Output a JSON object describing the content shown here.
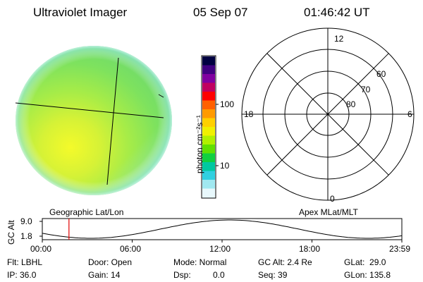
{
  "header": {
    "instrument": "Ultraviolet Imager",
    "date": "05 Sep 07",
    "time": "01:46:42 UT"
  },
  "colorbar": {
    "unit_label": "photon cm⁻²s⁻¹",
    "ticks": [
      "100",
      "10"
    ],
    "scale": "log",
    "colors": [
      "#000040",
      "#400080",
      "#8000a0",
      "#c00060",
      "#ff0000",
      "#ff6000",
      "#ff9a00",
      "#ffd000",
      "#f0f000",
      "#b0f000",
      "#60e000",
      "#10d040",
      "#00c8a0",
      "#30d0e0",
      "#a0e8f0",
      "#e8f8fc"
    ]
  },
  "image_panel": {
    "projection_label": "Geographic Lat/Lon",
    "dominant_colors": [
      "#80e060",
      "#c8f040",
      "#eef830",
      "#a8f0e0"
    ]
  },
  "polar_panel": {
    "projection_label": "Apex MLat/MLT",
    "mlt_labels": {
      "top": "12",
      "right": "6",
      "bottom": "0",
      "left": "18"
    },
    "mlat_labels": [
      "60",
      "70",
      "80"
    ]
  },
  "altitude_plot": {
    "ylabel": "GC Alt",
    "yticks": [
      "9.0",
      "1.8"
    ],
    "xticks": [
      "00:00",
      "06:00",
      "12:00",
      "18:00",
      "23:59"
    ],
    "current_time_marker_hours": 1.78
  },
  "info": {
    "filter": "Flt: LBHL",
    "door": "Door: Open",
    "mode": "Mode: Normal",
    "gc_alt": "GC Alt: 2.4 Re",
    "glat": "GLat:  29.0",
    "ip": "IP: 36.0",
    "gain": "Gain: 14",
    "dsp_label": "Dsp:",
    "dsp_value": "0.0",
    "seq": "Seq: 39",
    "glon": "GLon: 135.8"
  }
}
